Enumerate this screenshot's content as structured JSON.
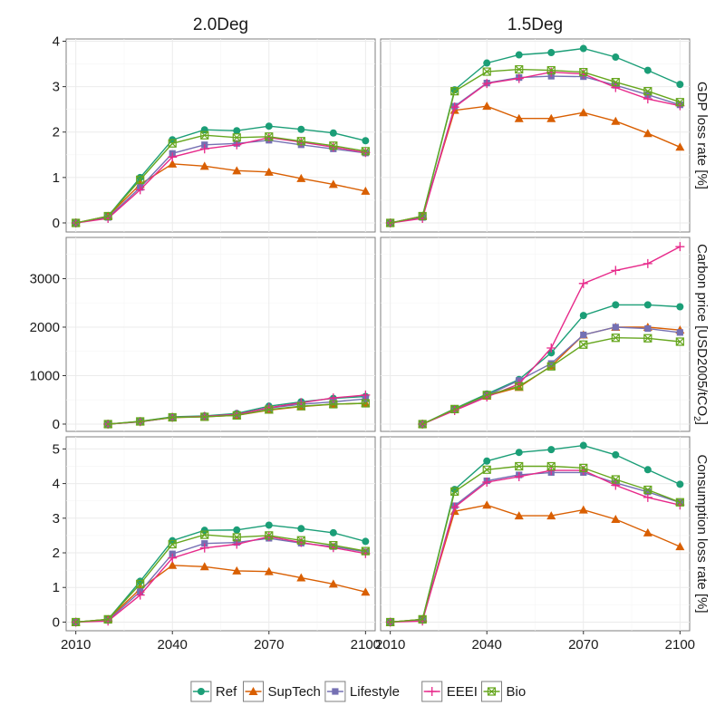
{
  "chart_data": {
    "type": "line",
    "facet_columns": [
      "2.0Deg",
      "1.5Deg"
    ],
    "facet_rows": [
      {
        "key": "gdp",
        "label": "GDP loss rate [%]",
        "ylim": [
          -0.2,
          4.05
        ],
        "yticks": [
          0,
          1,
          2,
          3,
          4
        ]
      },
      {
        "key": "carbon",
        "label_main": "Carbon price [USD2005/tCO",
        "label_sub": "2",
        "label_end": "]",
        "ylim": [
          -150,
          3850
        ],
        "yticks": [
          0,
          1000,
          2000,
          3000
        ]
      },
      {
        "key": "consumption",
        "label": "Consumption loss rate [%]",
        "ylim": [
          -0.25,
          5.35
        ],
        "yticks": [
          0,
          1,
          2,
          3,
          4,
          5
        ]
      }
    ],
    "x": [
      2010,
      2020,
      2030,
      2040,
      2050,
      2060,
      2070,
      2080,
      2090,
      2100
    ],
    "xticks": [
      2010,
      2040,
      2070,
      2100
    ],
    "xlim": [
      2007,
      2103
    ],
    "legend_position": "bottom",
    "series": [
      {
        "name": "Ref",
        "color": "#1b9e77",
        "marker": "circle",
        "values": {
          "gdp": {
            "2.0Deg": [
              0,
              0.15,
              1.0,
              1.83,
              2.05,
              2.03,
              2.13,
              2.06,
              1.98,
              1.81
            ],
            "1.5Deg": [
              0,
              0.15,
              2.93,
              3.52,
              3.7,
              3.75,
              3.84,
              3.65,
              3.36,
              3.05
            ]
          },
          "carbon": {
            "2.0Deg": [
              null,
              0,
              55,
              150,
              170,
              220,
              370,
              460,
              530,
              570
            ],
            "1.5Deg": [
              null,
              0,
              320,
              620,
              920,
              1470,
              2240,
              2460,
              2460,
              2420
            ]
          },
          "consumption": {
            "2.0Deg": [
              0,
              0.08,
              1.18,
              2.35,
              2.65,
              2.66,
              2.8,
              2.7,
              2.58,
              2.33
            ],
            "1.5Deg": [
              0,
              0.08,
              3.83,
              4.65,
              4.9,
              4.98,
              5.1,
              4.83,
              4.4,
              3.98
            ]
          }
        }
      },
      {
        "name": "SupTech",
        "color": "#d95f02",
        "marker": "triangle",
        "values": {
          "gdp": {
            "2.0Deg": [
              0,
              0.15,
              0.85,
              1.3,
              1.25,
              1.15,
              1.12,
              0.98,
              0.85,
              0.7
            ],
            "1.5Deg": [
              0,
              0.15,
              2.48,
              2.57,
              2.3,
              2.3,
              2.43,
              2.24,
              1.97,
              1.67
            ]
          },
          "carbon": {
            "2.0Deg": [
              null,
              0,
              50,
              135,
              150,
              180,
              290,
              360,
              410,
              430
            ],
            "1.5Deg": [
              null,
              0,
              300,
              580,
              760,
              1200,
              1840,
              2000,
              2000,
              1940
            ]
          },
          "consumption": {
            "2.0Deg": [
              0,
              0.08,
              0.96,
              1.64,
              1.6,
              1.48,
              1.46,
              1.28,
              1.1,
              0.87
            ],
            "1.5Deg": [
              0,
              0.08,
              3.2,
              3.38,
              3.07,
              3.07,
              3.24,
              2.97,
              2.58,
              2.18
            ]
          }
        }
      },
      {
        "name": "Lifestyle",
        "color": "#7570b3",
        "marker": "square",
        "values": {
          "gdp": {
            "2.0Deg": [
              0,
              0.12,
              0.78,
              1.53,
              1.72,
              1.75,
              1.82,
              1.72,
              1.63,
              1.54
            ],
            "1.5Deg": [
              0,
              0.12,
              2.57,
              3.08,
              3.2,
              3.23,
              3.22,
              3.03,
              2.82,
              2.6
            ]
          },
          "carbon": {
            "2.0Deg": [
              null,
              0,
              45,
              140,
              155,
              200,
              330,
              410,
              460,
              520
            ],
            "1.5Deg": [
              null,
              0,
              290,
              590,
              900,
              1250,
              1840,
              2000,
              1970,
              1890
            ]
          },
          "consumption": {
            "2.0Deg": [
              0,
              0.05,
              0.88,
              1.97,
              2.27,
              2.3,
              2.42,
              2.28,
              2.18,
              2.03
            ],
            "1.5Deg": [
              0,
              0.05,
              3.36,
              4.08,
              4.25,
              4.32,
              4.32,
              4.02,
              3.76,
              3.45
            ]
          }
        }
      },
      {
        "name": "EEEI",
        "color": "#e7298a",
        "marker": "plus",
        "values": {
          "gdp": {
            "2.0Deg": [
              0,
              0.1,
              0.73,
              1.45,
              1.63,
              1.72,
              1.88,
              1.78,
              1.67,
              1.55
            ],
            "1.5Deg": [
              0,
              0.1,
              2.55,
              3.07,
              3.18,
              3.32,
              3.28,
              2.98,
              2.73,
              2.58
            ]
          },
          "carbon": {
            "2.0Deg": [
              null,
              0,
              50,
              140,
              160,
              200,
              340,
              440,
              540,
              600
            ],
            "1.5Deg": [
              null,
              0,
              280,
              560,
              830,
              1570,
              2900,
              3170,
              3310,
              3660
            ]
          },
          "consumption": {
            "2.0Deg": [
              0,
              0.03,
              0.78,
              1.85,
              2.14,
              2.25,
              2.47,
              2.3,
              2.15,
              1.98
            ],
            "1.5Deg": [
              0,
              0.03,
              3.32,
              4.04,
              4.2,
              4.38,
              4.38,
              3.95,
              3.6,
              3.38
            ]
          }
        }
      },
      {
        "name": "Bio",
        "color": "#66a61e",
        "marker": "boxx",
        "values": {
          "gdp": {
            "2.0Deg": [
              0,
              0.15,
              0.95,
              1.75,
              1.93,
              1.88,
              1.9,
              1.8,
              1.7,
              1.58
            ],
            "1.5Deg": [
              0,
              0.15,
              2.9,
              3.33,
              3.38,
              3.36,
              3.32,
              3.1,
              2.9,
              2.66
            ]
          },
          "carbon": {
            "2.0Deg": [
              null,
              0,
              55,
              140,
              150,
              180,
              300,
              370,
              410,
              430
            ],
            "1.5Deg": [
              null,
              0,
              310,
              600,
              780,
              1190,
              1640,
              1780,
              1770,
              1700
            ]
          },
          "consumption": {
            "2.0Deg": [
              0,
              0.08,
              1.1,
              2.25,
              2.52,
              2.45,
              2.5,
              2.36,
              2.22,
              2.05
            ],
            "1.5Deg": [
              0,
              0.08,
              3.77,
              4.4,
              4.5,
              4.5,
              4.45,
              4.12,
              3.82,
              3.46
            ]
          }
        }
      }
    ]
  }
}
